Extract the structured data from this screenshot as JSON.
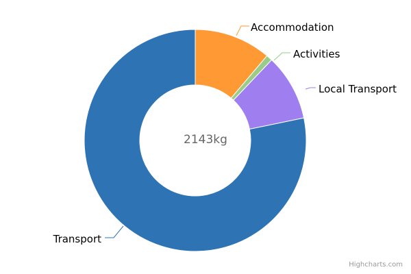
{
  "chart_data": {
    "type": "pie",
    "variant": "donut",
    "center_label": "2143kg",
    "slices": [
      {
        "name": "Accommodation",
        "value": 240,
        "color": "#ff9933"
      },
      {
        "name": "Activities",
        "value": 19,
        "color": "#99cc88"
      },
      {
        "name": "Local Transport",
        "value": 207,
        "color": "#9f7ff0"
      },
      {
        "name": "Transport",
        "value": 1677,
        "color": "#2e74b5"
      }
    ],
    "start_angle_deg": 0,
    "legend": "none",
    "data_labels": "outside-with-connectors"
  },
  "credits": {
    "text": "Highcharts.com"
  }
}
